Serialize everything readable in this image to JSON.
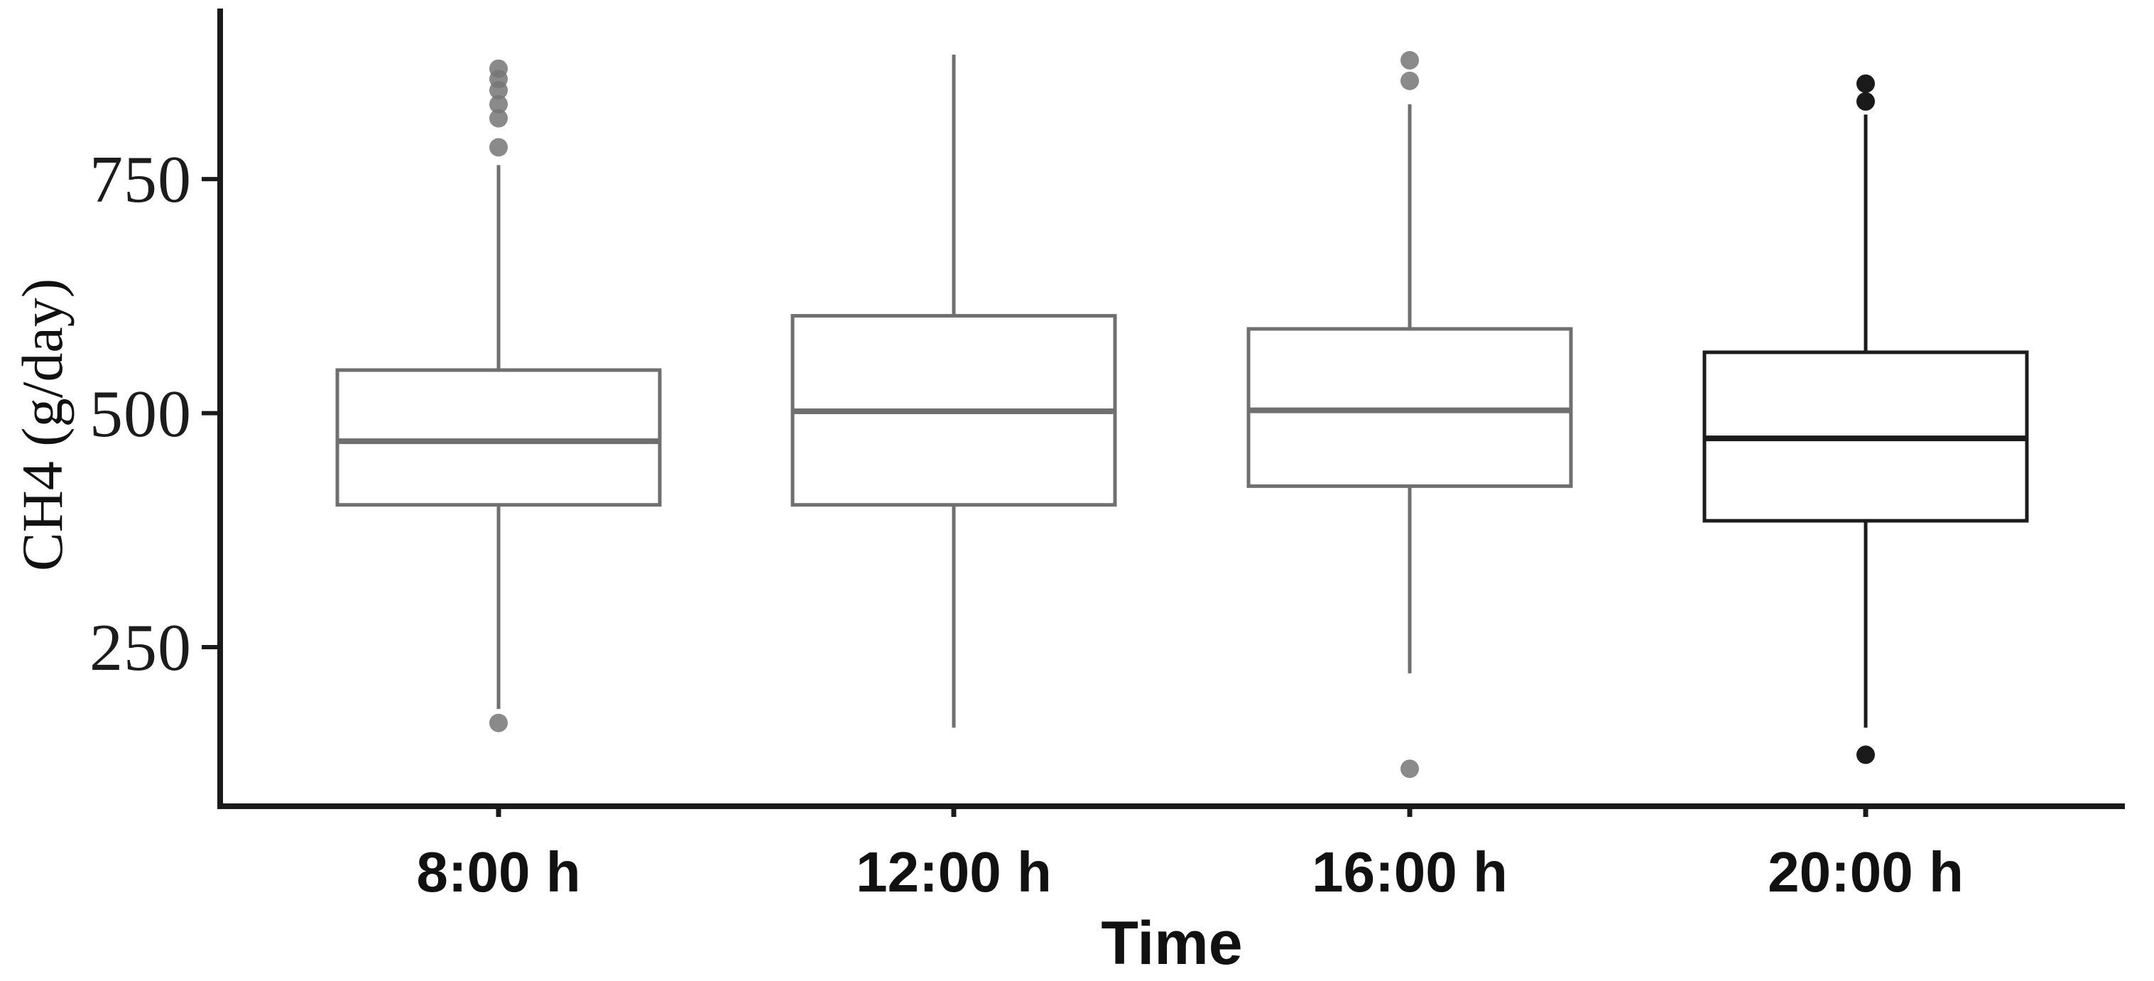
{
  "chart_data": {
    "type": "boxplot",
    "title": "",
    "xlabel": "Time",
    "ylabel": "CH4 (g/day)",
    "ylim": [
      80,
      930
    ],
    "yticks": [
      250,
      500,
      750
    ],
    "grid": false,
    "legend": "none",
    "categories": [
      "8:00 h",
      "12:00 h",
      "16:00 h",
      "20:00 h"
    ],
    "series": [
      {
        "label": "8:00 h",
        "whisker_low": 184,
        "q1": 402,
        "median": 470,
        "q3": 546,
        "whisker_high": 765,
        "outliers_low": [
          169
        ],
        "outliers_high": [
          784,
          815,
          830,
          845,
          857,
          868
        ],
        "color": "#6f6f6f",
        "outlier_color": "#757575"
      },
      {
        "label": "12:00 h",
        "whisker_low": 164,
        "q1": 402,
        "median": 502,
        "q3": 604,
        "whisker_high": 883,
        "outliers_low": [],
        "outliers_high": [],
        "color": "#6f6f6f",
        "outlier_color": "#757575"
      },
      {
        "label": "16:00 h",
        "whisker_low": 222,
        "q1": 422,
        "median": 503,
        "q3": 590,
        "whisker_high": 830,
        "outliers_low": [
          120
        ],
        "outliers_high": [
          855,
          877
        ],
        "color": "#6f6f6f",
        "outlier_color": "#757575"
      },
      {
        "label": "20:00 h",
        "whisker_low": 164,
        "q1": 385,
        "median": 473,
        "q3": 565,
        "whisker_high": 819,
        "outliers_low": [
          135
        ],
        "outliers_high": [
          833,
          852
        ],
        "color": "#1c1c1c",
        "outlier_color": "#1a1a1a"
      }
    ]
  }
}
